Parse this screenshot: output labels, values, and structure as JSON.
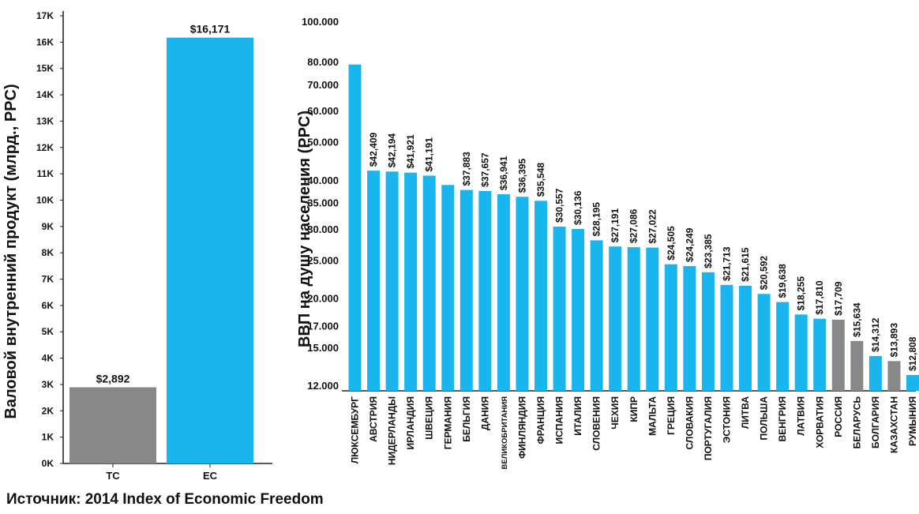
{
  "source": "Источник: 2014 Index of Economic Freedom",
  "colors": {
    "eu": "#19b5ef",
    "other": "#888888",
    "axis": "#222222",
    "text": "#111111"
  },
  "chart_data": [
    {
      "type": "bar",
      "ylabel": "Валовой внутренний продукт (млрд., PPC)",
      "categories": [
        "ТС",
        "ЕС"
      ],
      "values": [
        2892,
        16171
      ],
      "data_labels": [
        "$2,892",
        "$16,171"
      ],
      "bar_colors": [
        "#888888",
        "#19b5ef"
      ],
      "ylim": [
        0,
        17000
      ],
      "ticks": [
        0,
        1000,
        2000,
        3000,
        4000,
        5000,
        6000,
        7000,
        8000,
        9000,
        10000,
        11000,
        12000,
        13000,
        14000,
        15000,
        16000,
        17000
      ],
      "tick_labels": [
        "0K",
        "1K",
        "2K",
        "3K",
        "4K",
        "5K",
        "6K",
        "7K",
        "8K",
        "9K",
        "10K",
        "11K",
        "12K",
        "13K",
        "14K",
        "15K",
        "16K",
        "17K"
      ],
      "grid": false
    },
    {
      "type": "bar",
      "ylabel": "ВВП на душу населения (PPC)",
      "yscale": "log",
      "ylim": [
        11000,
        100000
      ],
      "ticks": [
        12000,
        15000,
        17000,
        20000,
        25000,
        30000,
        35000,
        40000,
        50000,
        60000,
        70000,
        80000,
        100000
      ],
      "tick_labels": [
        "12.000",
        "15.000",
        "17.000",
        "20.000",
        "25.000",
        "30.000",
        "35.000",
        "40.000",
        "50.000",
        "60.000",
        "70.000",
        "80.000",
        "100.000"
      ],
      "grid": false,
      "categories": [
        "ЛЮКСЕМБУРГ",
        "АВСТРИЯ",
        "НИДЕРЛАНДЫ",
        "ИРЛАНДИЯ",
        "ШВЕЦИЯ",
        "ГЕРМАНИЯ",
        "БЕЛЬГИЯ",
        "ДАНИЯ",
        "ВЕЛИКОБРИТАНИЯ",
        "ФИНЛЯНДИЯ",
        "ФРАНЦИЯ",
        "ИСПАНИЯ",
        "ИТАЛИЯ",
        "СЛОВЕНИЯ",
        "ЧЕХИЯ",
        "КИПР",
        "МАЛЬТА",
        "ГРЕЦИЯ",
        "СЛОВАКИЯ",
        "ПОРТУГАЛИЯ",
        "ЭСТОНИЯ",
        "ЛИТВА",
        "ПОЛЬША",
        "ВЕНГРИЯ",
        "ЛАТВИЯ",
        "ХОРВАТИЯ",
        "РОССИЯ",
        "БЕЛАРУСЬ",
        "БОЛГАРИЯ",
        "КАЗАХСТАН",
        "РУМЫНИЯ"
      ],
      "values": [
        79000,
        42409,
        42194,
        41921,
        41191,
        39000,
        37883,
        37657,
        36941,
        36395,
        35548,
        30557,
        30136,
        28195,
        27191,
        27086,
        27022,
        24505,
        24249,
        23385,
        21713,
        21615,
        20592,
        19638,
        18255,
        17810,
        17709,
        15634,
        14312,
        13893,
        12808
      ],
      "data_labels": [
        "",
        "$42,409",
        "$42,194",
        "$41,921",
        "$41,191",
        "",
        "$37,883",
        "$37,657",
        "$36,941",
        "$36,395",
        "$35,548",
        "$30,557",
        "$30,136",
        "$28,195",
        "$27,191",
        "$27,086",
        "$27,022",
        "$24,505",
        "$24,249",
        "$23,385",
        "$21,713",
        "$21,615",
        "$20,592",
        "$19,638",
        "$18,255",
        "$17,810",
        "$17,709",
        "$15,634",
        "$14,312",
        "$13,893",
        "$12,808"
      ],
      "groups": [
        "eu",
        "eu",
        "eu",
        "eu",
        "eu",
        "eu",
        "eu",
        "eu",
        "eu",
        "eu",
        "eu",
        "eu",
        "eu",
        "eu",
        "eu",
        "eu",
        "eu",
        "eu",
        "eu",
        "eu",
        "eu",
        "eu",
        "eu",
        "eu",
        "eu",
        "eu",
        "other",
        "other",
        "eu",
        "other",
        "eu"
      ]
    }
  ]
}
